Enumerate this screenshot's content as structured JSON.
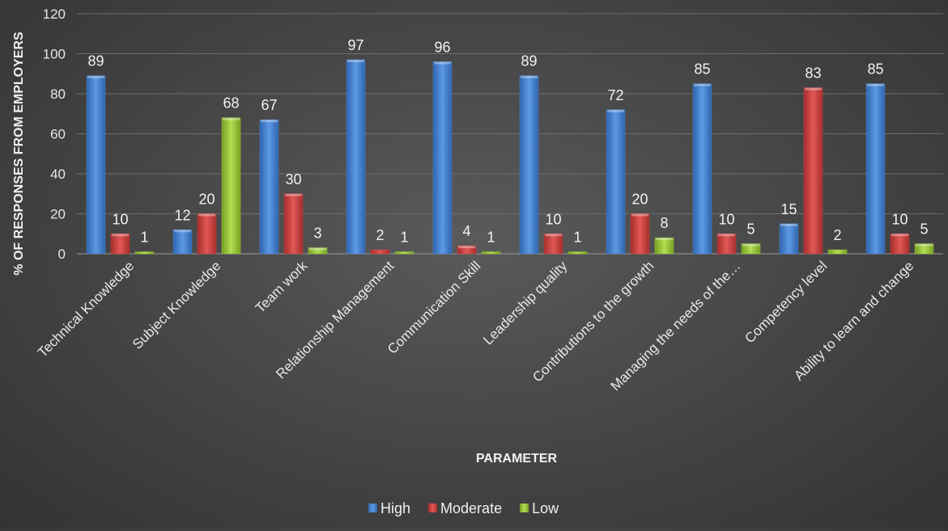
{
  "chart_data": {
    "type": "bar",
    "title": "",
    "xlabel": "PARAMETER",
    "ylabel": "% OF RESPONSES FROM EMPLOYERS",
    "ylim": [
      0,
      120
    ],
    "yticks": [
      0,
      20,
      40,
      60,
      80,
      100,
      120
    ],
    "grid": true,
    "legend_position": "bottom",
    "categories": [
      "Technical Knowledge",
      "Subject Knowledge",
      "Team work",
      "Relationship Management",
      "Communication Skill",
      "Leadership quality",
      "Contributions to the growth",
      "Managing the needs of the…",
      "Competency level",
      "Ability to learn and change"
    ],
    "series": [
      {
        "name": "High",
        "color": "#4a86d4",
        "values": [
          89,
          12,
          67,
          97,
          96,
          89,
          72,
          85,
          15,
          85
        ]
      },
      {
        "name": "Moderate",
        "color": "#cf3f3e",
        "values": [
          10,
          20,
          30,
          2,
          4,
          10,
          20,
          10,
          83,
          10
        ]
      },
      {
        "name": "Low",
        "color": "#9bc83a",
        "values": [
          1,
          68,
          3,
          1,
          1,
          1,
          8,
          5,
          2,
          5
        ]
      }
    ]
  }
}
